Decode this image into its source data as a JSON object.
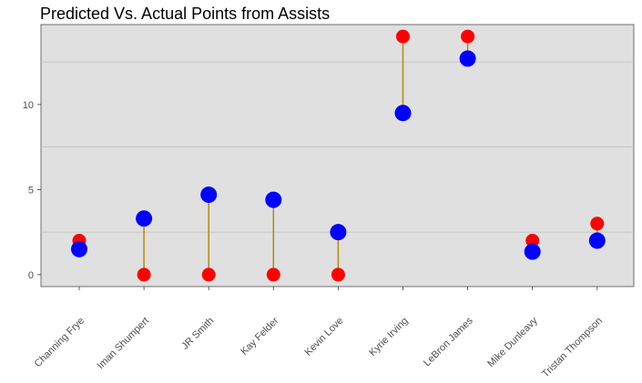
{
  "chart_data": {
    "type": "scatter",
    "title": "Predicted Vs. Actual Points from Assists",
    "xlabel": "",
    "ylabel": "",
    "categories": [
      "Channing Frye",
      "Iman Shumpert",
      "JR Smith",
      "Kay Felder",
      "Kevin Love",
      "Kyrie Irving",
      "LeBron James",
      "Mike Dunleavy",
      "Tristan Thompson"
    ],
    "series": [
      {
        "color": "#0000ff",
        "values": [
          1.5,
          3.3,
          4.7,
          4.4,
          2.5,
          9.5,
          12.7,
          1.35,
          2.0
        ]
      },
      {
        "color": "#ff0000",
        "values": [
          2.0,
          0.0,
          0.0,
          0.0,
          0.0,
          14.0,
          14.0,
          2.0,
          3.0
        ]
      }
    ],
    "ylim": [
      -0.7,
      14.7
    ],
    "yticks": [
      0,
      5,
      10
    ],
    "y_minor_gridlines": [
      2.5,
      7.5,
      12.5
    ],
    "segment_color": "#b8860b",
    "panel_background": "#e0e0e0",
    "grid": true,
    "legend": "none"
  }
}
